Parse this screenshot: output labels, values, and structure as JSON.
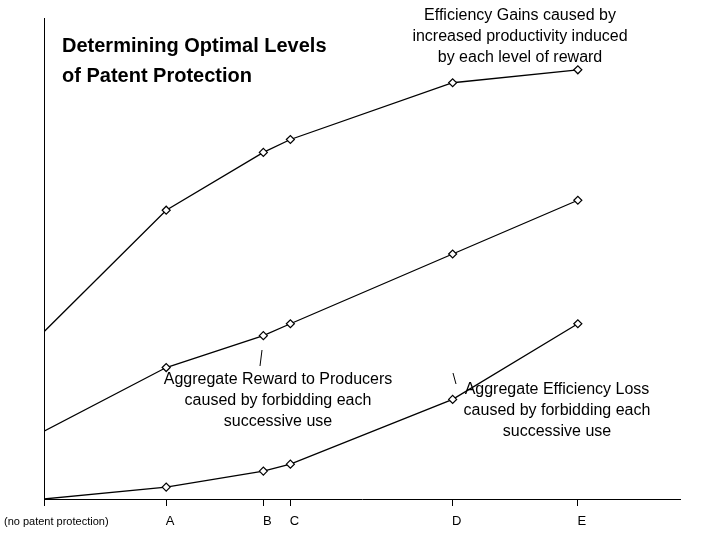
{
  "chart_data": {
    "type": "line",
    "title": "Determining Optimal Levels\nof Patent Protection",
    "x": [
      0,
      122,
      219,
      246,
      408,
      533
    ],
    "xlim": [
      0,
      635
    ],
    "xticks": [
      {
        "value": 0,
        "label": "(no patent protection)"
      },
      {
        "value": 122,
        "label": "A"
      },
      {
        "value": 219,
        "label": "B"
      },
      {
        "value": 246,
        "label": "C"
      },
      {
        "value": 408,
        "label": "D"
      },
      {
        "value": 533,
        "label": "E"
      }
    ],
    "ylim": [
      0,
      483
    ],
    "tick_labels": "x",
    "grid": false,
    "series": [
      {
        "name": "Efficiency Gains caused by\nincreased productivity induced\nby each level of reward",
        "color": "#000000",
        "marker": "diamond",
        "line_style": "solid",
        "values": [
          168,
          290,
          348,
          361,
          418,
          431
        ]
      },
      {
        "name": "Aggregate Reward to Producers\ncaused by forbidding each\nsuccessive use",
        "color": "#000000",
        "marker": "diamond",
        "line_style": "solid",
        "values": [
          68,
          132,
          164,
          176,
          246,
          300
        ]
      },
      {
        "name": "Aggregate Efficiency Loss\ncaused by forbidding each\nsuccessive use",
        "color": "#000000",
        "marker": "diamond",
        "line_style": "solid",
        "values": [
          0,
          12,
          28,
          35,
          100,
          176
        ]
      }
    ]
  }
}
